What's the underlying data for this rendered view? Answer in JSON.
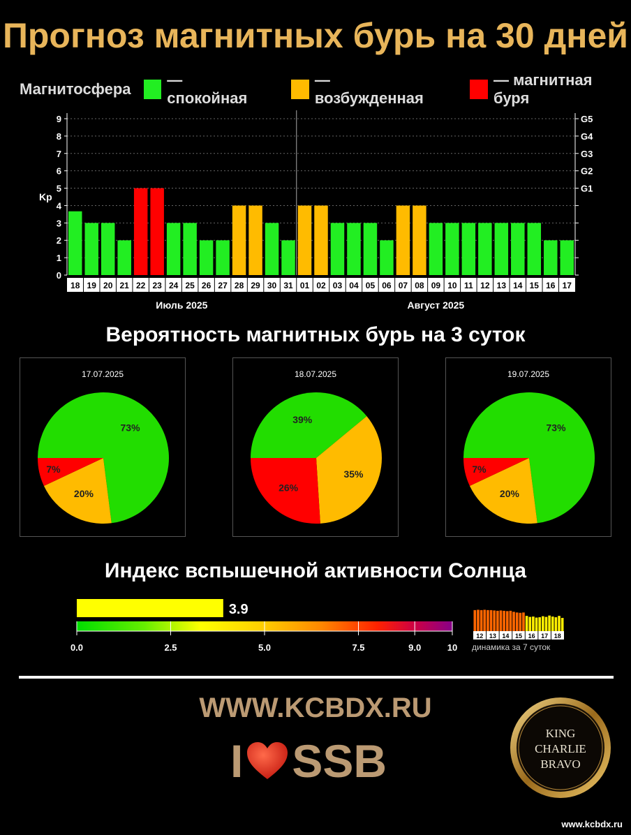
{
  "title": "Прогноз магнитных бурь на 30 дней",
  "legend": {
    "label": "Магнитосфера",
    "items": [
      {
        "text": "— спокойная",
        "color": "#22ee22"
      },
      {
        "text": "— возбужденная",
        "color": "#ffbb00"
      },
      {
        "text": "— магнитная буря",
        "color": "#ff0000"
      }
    ]
  },
  "chart_data": [
    {
      "type": "bar",
      "ylabel": "Kp",
      "ylim": [
        0,
        9
      ],
      "yticks": [
        0,
        1,
        2,
        3,
        4,
        5,
        6,
        7,
        8,
        9
      ],
      "right_ticks": [
        {
          "label": "G1",
          "kp": 5
        },
        {
          "label": "G2",
          "kp": 6
        },
        {
          "label": "G3",
          "kp": 7
        },
        {
          "label": "G4",
          "kp": 8
        },
        {
          "label": "G5",
          "kp": 9
        }
      ],
      "categories": [
        "18",
        "19",
        "20",
        "21",
        "22",
        "23",
        "24",
        "25",
        "26",
        "27",
        "28",
        "29",
        "30",
        "31",
        "01",
        "02",
        "03",
        "04",
        "05",
        "06",
        "07",
        "08",
        "09",
        "10",
        "11",
        "12",
        "13",
        "14",
        "15",
        "16",
        "17"
      ],
      "values": [
        3.67,
        3,
        3,
        2,
        5,
        5,
        3,
        3,
        2,
        2,
        4,
        4,
        3,
        2,
        4,
        4,
        3,
        3,
        3,
        2,
        4,
        4,
        3,
        3,
        3,
        3,
        3,
        3,
        3,
        2,
        2
      ],
      "months": [
        {
          "label": "Июль 2025",
          "start": 0,
          "end": 13
        },
        {
          "label": "Август 2025",
          "start": 14,
          "end": 30
        }
      ],
      "colors": {
        "calm": "#22ee22",
        "active": "#ffbb00",
        "storm": "#ff0000"
      }
    },
    {
      "type": "pie",
      "title": "17.07.2025",
      "slices": [
        {
          "value": 73,
          "label": "73%",
          "color": "#22dd00"
        },
        {
          "value": 20,
          "label": "20%",
          "color": "#ffbb00"
        },
        {
          "value": 7,
          "label": "7%",
          "color": "#ff0000"
        }
      ]
    },
    {
      "type": "pie",
      "title": "18.07.2025",
      "slices": [
        {
          "value": 39,
          "label": "39%",
          "color": "#22dd00"
        },
        {
          "value": 35,
          "label": "35%",
          "color": "#ffbb00"
        },
        {
          "value": 26,
          "label": "26%",
          "color": "#ff0000"
        }
      ]
    },
    {
      "type": "pie",
      "title": "19.07.2025",
      "slices": [
        {
          "value": 73,
          "label": "73%",
          "color": "#22dd00"
        },
        {
          "value": 20,
          "label": "20%",
          "color": "#ffbb00"
        },
        {
          "value": 7,
          "label": "7%",
          "color": "#ff0000"
        }
      ]
    }
  ],
  "prob_title": "Вероятность магнитных бурь на 3 суток",
  "flare": {
    "title": "Индекс вспышечной активности Солнца",
    "value": 3.9,
    "value_label": "3.9",
    "max": 10,
    "scale_labels": [
      {
        "v": 0,
        "t": "0.0"
      },
      {
        "v": 2.5,
        "t": "2.5"
      },
      {
        "v": 5,
        "t": "5.0"
      },
      {
        "v": 7.5,
        "t": "7.5"
      },
      {
        "v": 9,
        "t": "9.0"
      },
      {
        "v": 10,
        "t": "10"
      }
    ],
    "dynamics_label": "динамика за 7 суток",
    "dynamics_days": [
      "12",
      "13",
      "14",
      "15",
      "16",
      "17",
      "18"
    ],
    "dynamics_values": [
      6.2,
      6.3,
      6.2,
      6.3,
      6.2,
      6.2,
      6.1,
      6.0,
      6.1,
      6.0,
      5.9,
      6.0,
      5.7,
      5.5,
      5.4,
      5.5,
      4.5,
      4.2,
      4.3,
      4.0,
      4.1,
      4.4,
      4.2,
      4.6,
      4.3,
      4.1,
      4.5,
      3.9
    ]
  },
  "site": "WWW.KCBDX.RU",
  "love_text": "SSB",
  "seal_lines": [
    "KING",
    "CHARLIE",
    "BRAVO"
  ],
  "footer_url": "www.kcbdx.ru"
}
